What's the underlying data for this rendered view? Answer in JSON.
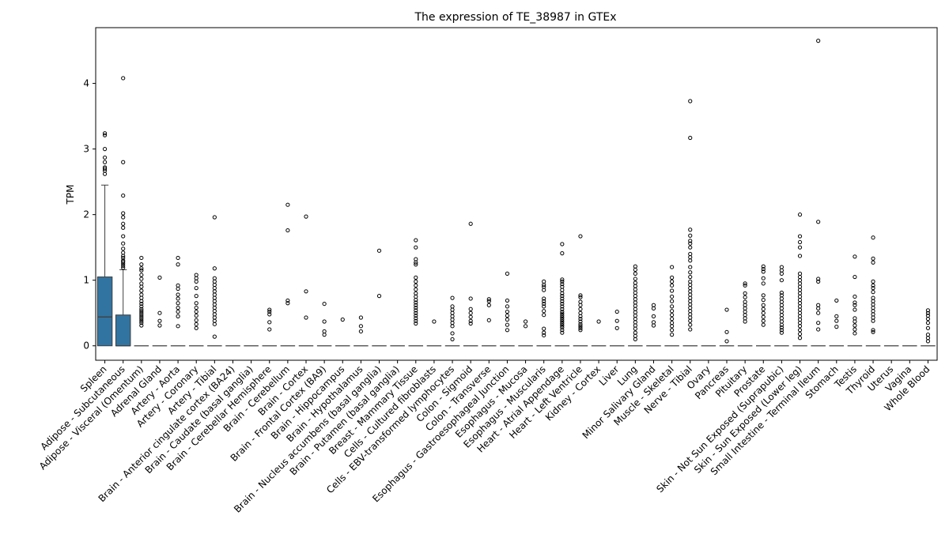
{
  "chart_data": {
    "type": "box",
    "title": "The expression of TE_38987 in GTEx",
    "xlabel": "",
    "ylabel": "TPM",
    "ylim": [
      -0.22,
      4.85
    ],
    "yticks": [
      0,
      1,
      2,
      3,
      4
    ],
    "grid": false,
    "legend": "none",
    "box_color": "#3274a1",
    "categories": [
      "Spleen",
      "Adipose - Subcutaneous",
      "Adipose - Visceral (Omentum)",
      "Adrenal Gland",
      "Artery - Aorta",
      "Artery - Coronary",
      "Artery - Tibial",
      "Brain - Anterior cingulate cortex (BA24)",
      "Brain - Caudate (basal ganglia)",
      "Brain - Cerebellar Hemisphere",
      "Brain - Cerebellum",
      "Brain - Cortex",
      "Brain - Frontal Cortex (BA9)",
      "Brain - Hippocampus",
      "Brain - Hypothalamus",
      "Brain - Nucleus accumbens (basal ganglia)",
      "Brain - Putamen (basal ganglia)",
      "Breast - Mammary Tissue",
      "Cells - Cultured fibroblasts",
      "Cells - EBV-transformed lymphocytes",
      "Colon - Sigmoid",
      "Colon - Transverse",
      "Esophagus - Gastroesophageal Junction",
      "Esophagus - Mucosa",
      "Esophagus - Muscularis",
      "Heart - Atrial Appendage",
      "Heart - Left Ventricle",
      "Kidney - Cortex",
      "Liver",
      "Lung",
      "Minor Salivary Gland",
      "Muscle - Skeletal",
      "Nerve - Tibial",
      "Ovary",
      "Pancreas",
      "Pituitary",
      "Prostate",
      "Skin - Not Sun Exposed (Suprapubic)",
      "Skin - Sun Exposed (Lower leg)",
      "Small Intestine - Terminal Ileum",
      "Stomach",
      "Testis",
      "Thyroid",
      "Uterus",
      "Vagina",
      "Whole Blood"
    ],
    "boxes": [
      {
        "q1": 0,
        "median": 0.44,
        "q3": 1.05,
        "whislo": 0,
        "whishi": 2.45,
        "fliers": [
          2.62,
          2.67,
          2.7,
          2.72,
          2.8,
          2.87,
          3.0,
          3.21,
          3.24
        ]
      },
      {
        "q1": 0,
        "median": 0,
        "q3": 0.47,
        "whislo": 0,
        "whishi": 1.16,
        "fliers": [
          1.19,
          1.22,
          1.25,
          1.28,
          1.3,
          1.34,
          1.37,
          1.42,
          1.48,
          1.56,
          1.67,
          1.8,
          1.86,
          1.96,
          2.02,
          2.29,
          2.8,
          4.08
        ]
      },
      {
        "q1": 0,
        "median": 0,
        "q3": 0,
        "whislo": 0,
        "whishi": 0,
        "fliers": [
          0.31,
          0.35,
          0.38,
          0.41,
          0.44,
          0.47,
          0.5,
          0.53,
          0.56,
          0.6,
          0.64,
          0.68,
          0.73,
          0.78,
          0.84,
          0.9,
          0.95,
          1.02,
          1.08,
          1.15,
          1.18,
          1.24,
          1.34
        ]
      },
      {
        "q1": 0,
        "median": 0,
        "q3": 0,
        "whislo": 0,
        "whishi": 0,
        "fliers": [
          0.31,
          0.38,
          0.5,
          1.04
        ]
      },
      {
        "q1": 0,
        "median": 0,
        "q3": 0,
        "whislo": 0,
        "whishi": 0,
        "fliers": [
          0.3,
          0.45,
          0.52,
          0.58,
          0.65,
          0.72,
          0.78,
          0.87,
          0.92,
          1.24,
          1.34
        ]
      },
      {
        "q1": 0,
        "median": 0,
        "q3": 0,
        "whislo": 0,
        "whishi": 0,
        "fliers": [
          0.27,
          0.33,
          0.39,
          0.46,
          0.52,
          0.58,
          0.65,
          0.76,
          0.88,
          0.98,
          1.03,
          1.08
        ]
      },
      {
        "q1": 0,
        "median": 0,
        "q3": 0,
        "whislo": 0,
        "whishi": 0,
        "fliers": [
          0.14,
          0.33,
          0.38,
          0.43,
          0.48,
          0.53,
          0.58,
          0.63,
          0.68,
          0.73,
          0.78,
          0.83,
          0.88,
          0.93,
          0.98,
          1.03,
          1.18,
          1.96
        ]
      },
      {
        "q1": 0,
        "median": 0,
        "q3": 0,
        "whislo": 0,
        "whishi": 0,
        "fliers": []
      },
      {
        "q1": 0,
        "median": 0,
        "q3": 0,
        "whislo": 0,
        "whishi": 0,
        "fliers": []
      },
      {
        "q1": 0,
        "median": 0,
        "q3": 0,
        "whislo": 0,
        "whishi": 0,
        "fliers": [
          0.25,
          0.36,
          0.48,
          0.52,
          0.55
        ]
      },
      {
        "q1": 0,
        "median": 0,
        "q3": 0,
        "whislo": 0,
        "whishi": 0,
        "fliers": [
          0.65,
          0.69,
          1.76,
          2.15
        ]
      },
      {
        "q1": 0,
        "median": 0,
        "q3": 0,
        "whislo": 0,
        "whishi": 0,
        "fliers": [
          0.43,
          0.83,
          1.97
        ]
      },
      {
        "q1": 0,
        "median": 0,
        "q3": 0,
        "whislo": 0,
        "whishi": 0,
        "fliers": [
          0.17,
          0.22,
          0.37,
          0.64
        ]
      },
      {
        "q1": 0,
        "median": 0,
        "q3": 0,
        "whislo": 0,
        "whishi": 0,
        "fliers": [
          0.4
        ]
      },
      {
        "q1": 0,
        "median": 0,
        "q3": 0,
        "whislo": 0,
        "whishi": 0,
        "fliers": [
          0.22,
          0.3,
          0.43
        ]
      },
      {
        "q1": 0,
        "median": 0,
        "q3": 0,
        "whislo": 0,
        "whishi": 0,
        "fliers": [
          0.76,
          1.45
        ]
      },
      {
        "q1": 0,
        "median": 0,
        "q3": 0,
        "whislo": 0,
        "whishi": 0,
        "fliers": []
      },
      {
        "q1": 0,
        "median": 0,
        "q3": 0,
        "whislo": 0,
        "whishi": 0,
        "fliers": [
          0.34,
          0.38,
          0.42,
          0.46,
          0.5,
          0.54,
          0.58,
          0.62,
          0.66,
          0.7,
          0.75,
          0.8,
          0.86,
          0.92,
          0.98,
          1.04,
          1.24,
          1.27,
          1.32,
          1.5,
          1.61
        ]
      },
      {
        "q1": 0,
        "median": 0,
        "q3": 0,
        "whislo": 0,
        "whishi": 0,
        "fliers": [
          0.37
        ]
      },
      {
        "q1": 0,
        "median": 0,
        "q3": 0,
        "whislo": 0,
        "whishi": 0,
        "fliers": [
          0.1,
          0.19,
          0.3,
          0.35,
          0.4,
          0.45,
          0.5,
          0.55,
          0.6,
          0.73
        ]
      },
      {
        "q1": 0,
        "median": 0,
        "q3": 0,
        "whislo": 0,
        "whishi": 0,
        "fliers": [
          0.34,
          0.38,
          0.44,
          0.5,
          0.56,
          0.72,
          1.86
        ]
      },
      {
        "q1": 0,
        "median": 0,
        "q3": 0,
        "whislo": 0,
        "whishi": 0,
        "fliers": [
          0.39,
          0.62,
          0.68,
          0.71
        ]
      },
      {
        "q1": 0,
        "median": 0,
        "q3": 0,
        "whislo": 0,
        "whishi": 0,
        "fliers": [
          0.24,
          0.32,
          0.4,
          0.46,
          0.52,
          0.6,
          0.69,
          1.1
        ]
      },
      {
        "q1": 0,
        "median": 0,
        "q3": 0,
        "whislo": 0,
        "whishi": 0,
        "fliers": [
          0.3,
          0.37
        ]
      },
      {
        "q1": 0,
        "median": 0,
        "q3": 0,
        "whislo": 0,
        "whishi": 0,
        "fliers": [
          0.16,
          0.2,
          0.26,
          0.47,
          0.53,
          0.6,
          0.64,
          0.68,
          0.72,
          0.85,
          0.9,
          0.93,
          0.98
        ]
      },
      {
        "q1": 0,
        "median": 0,
        "q3": 0,
        "whislo": 0,
        "whishi": 0,
        "fliers": [
          0.2,
          0.24,
          0.28,
          0.31,
          0.34,
          0.37,
          0.4,
          0.43,
          0.46,
          0.49,
          0.52,
          0.56,
          0.6,
          0.64,
          0.68,
          0.72,
          0.76,
          0.8,
          0.85,
          0.9,
          0.94,
          0.98,
          1.01,
          1.41,
          1.55
        ]
      },
      {
        "q1": 0,
        "median": 0,
        "q3": 0,
        "whislo": 0,
        "whishi": 0,
        "fliers": [
          0.24,
          0.27,
          0.3,
          0.33,
          0.37,
          0.41,
          0.45,
          0.5,
          0.56,
          0.62,
          0.67,
          0.74,
          0.77,
          1.67
        ]
      },
      {
        "q1": 0,
        "median": 0,
        "q3": 0,
        "whislo": 0,
        "whishi": 0,
        "fliers": [
          0.37
        ]
      },
      {
        "q1": 0,
        "median": 0,
        "q3": 0,
        "whislo": 0,
        "whishi": 0,
        "fliers": [
          0.27,
          0.38,
          0.52
        ]
      },
      {
        "q1": 0,
        "median": 0,
        "q3": 0,
        "whislo": 0,
        "whishi": 0,
        "fliers": [
          0.1,
          0.15,
          0.2,
          0.26,
          0.31,
          0.36,
          0.41,
          0.46,
          0.51,
          0.56,
          0.61,
          0.66,
          0.71,
          0.76,
          0.81,
          0.86,
          0.91,
          0.96,
          1.02,
          1.1,
          1.16,
          1.21
        ]
      },
      {
        "q1": 0,
        "median": 0,
        "q3": 0,
        "whislo": 0,
        "whishi": 0,
        "fliers": [
          0.31,
          0.36,
          0.45,
          0.57,
          0.62
        ]
      },
      {
        "q1": 0,
        "median": 0,
        "q3": 0,
        "whislo": 0,
        "whishi": 0,
        "fliers": [
          0.17,
          0.24,
          0.3,
          0.35,
          0.41,
          0.47,
          0.53,
          0.6,
          0.68,
          0.75,
          0.84,
          0.92,
          0.98,
          1.04,
          1.2
        ]
      },
      {
        "q1": 0,
        "median": 0,
        "q3": 0,
        "whislo": 0,
        "whishi": 0,
        "fliers": [
          0.25,
          0.32,
          0.38,
          0.43,
          0.48,
          0.53,
          0.58,
          0.63,
          0.68,
          0.73,
          0.78,
          0.83,
          0.88,
          0.93,
          0.98,
          1.05,
          1.12,
          1.2,
          1.3,
          1.35,
          1.4,
          1.5,
          1.56,
          1.6,
          1.68,
          1.77,
          3.17,
          3.73
        ]
      },
      {
        "q1": 0,
        "median": 0,
        "q3": 0,
        "whislo": 0,
        "whishi": 0,
        "fliers": []
      },
      {
        "q1": 0,
        "median": 0,
        "q3": 0,
        "whislo": 0,
        "whishi": 0,
        "fliers": [
          0.07,
          0.21,
          0.55
        ]
      },
      {
        "q1": 0,
        "median": 0,
        "q3": 0,
        "whislo": 0,
        "whishi": 0,
        "fliers": [
          0.37,
          0.42,
          0.47,
          0.52,
          0.57,
          0.62,
          0.67,
          0.74,
          0.8,
          0.92,
          0.95
        ]
      },
      {
        "q1": 0,
        "median": 0,
        "q3": 0,
        "whislo": 0,
        "whishi": 0,
        "fliers": [
          0.32,
          0.38,
          0.44,
          0.5,
          0.56,
          0.62,
          0.7,
          0.77,
          0.95,
          1.03,
          1.13,
          1.17,
          1.21
        ]
      },
      {
        "q1": 0,
        "median": 0,
        "q3": 0,
        "whislo": 0,
        "whishi": 0,
        "fliers": [
          0.2,
          0.24,
          0.28,
          0.32,
          0.37,
          0.42,
          0.47,
          0.52,
          0.57,
          0.62,
          0.67,
          0.72,
          0.77,
          0.81,
          1.0,
          1.1,
          1.15,
          1.2
        ]
      },
      {
        "q1": 0,
        "median": 0,
        "q3": 0,
        "whislo": 0,
        "whishi": 0,
        "fliers": [
          0.12,
          0.18,
          0.24,
          0.3,
          0.35,
          0.4,
          0.45,
          0.5,
          0.55,
          0.6,
          0.65,
          0.7,
          0.75,
          0.8,
          0.85,
          0.9,
          0.95,
          1.0,
          1.05,
          1.1,
          1.37,
          1.5,
          1.58,
          1.67,
          2.0
        ]
      },
      {
        "q1": 0,
        "median": 0,
        "q3": 0,
        "whislo": 0,
        "whishi": 0,
        "fliers": [
          0.25,
          0.35,
          0.5,
          0.57,
          0.62,
          0.98,
          1.02,
          1.89,
          4.65
        ]
      },
      {
        "q1": 0,
        "median": 0,
        "q3": 0,
        "whislo": 0,
        "whishi": 0,
        "fliers": [
          0.29,
          0.38,
          0.45,
          0.69
        ]
      },
      {
        "q1": 0,
        "median": 0,
        "q3": 0,
        "whislo": 0,
        "whishi": 0,
        "fliers": [
          0.19,
          0.25,
          0.31,
          0.37,
          0.42,
          0.55,
          0.62,
          0.66,
          0.75,
          1.05,
          1.36
        ]
      },
      {
        "q1": 0,
        "median": 0,
        "q3": 0,
        "whislo": 0,
        "whishi": 0,
        "fliers": [
          0.21,
          0.24,
          0.38,
          0.43,
          0.48,
          0.53,
          0.58,
          0.63,
          0.68,
          0.73,
          0.82,
          0.88,
          0.92,
          0.98,
          1.27,
          1.33,
          1.65
        ]
      },
      {
        "q1": 0,
        "median": 0,
        "q3": 0,
        "whislo": 0,
        "whishi": 0,
        "fliers": []
      },
      {
        "q1": 0,
        "median": 0,
        "q3": 0,
        "whislo": 0,
        "whishi": 0,
        "fliers": []
      },
      {
        "q1": 0,
        "median": 0,
        "q3": 0,
        "whislo": 0,
        "whishi": 0,
        "fliers": [
          0.07,
          0.12,
          0.17,
          0.27,
          0.35,
          0.41,
          0.46,
          0.5,
          0.54
        ]
      }
    ]
  }
}
